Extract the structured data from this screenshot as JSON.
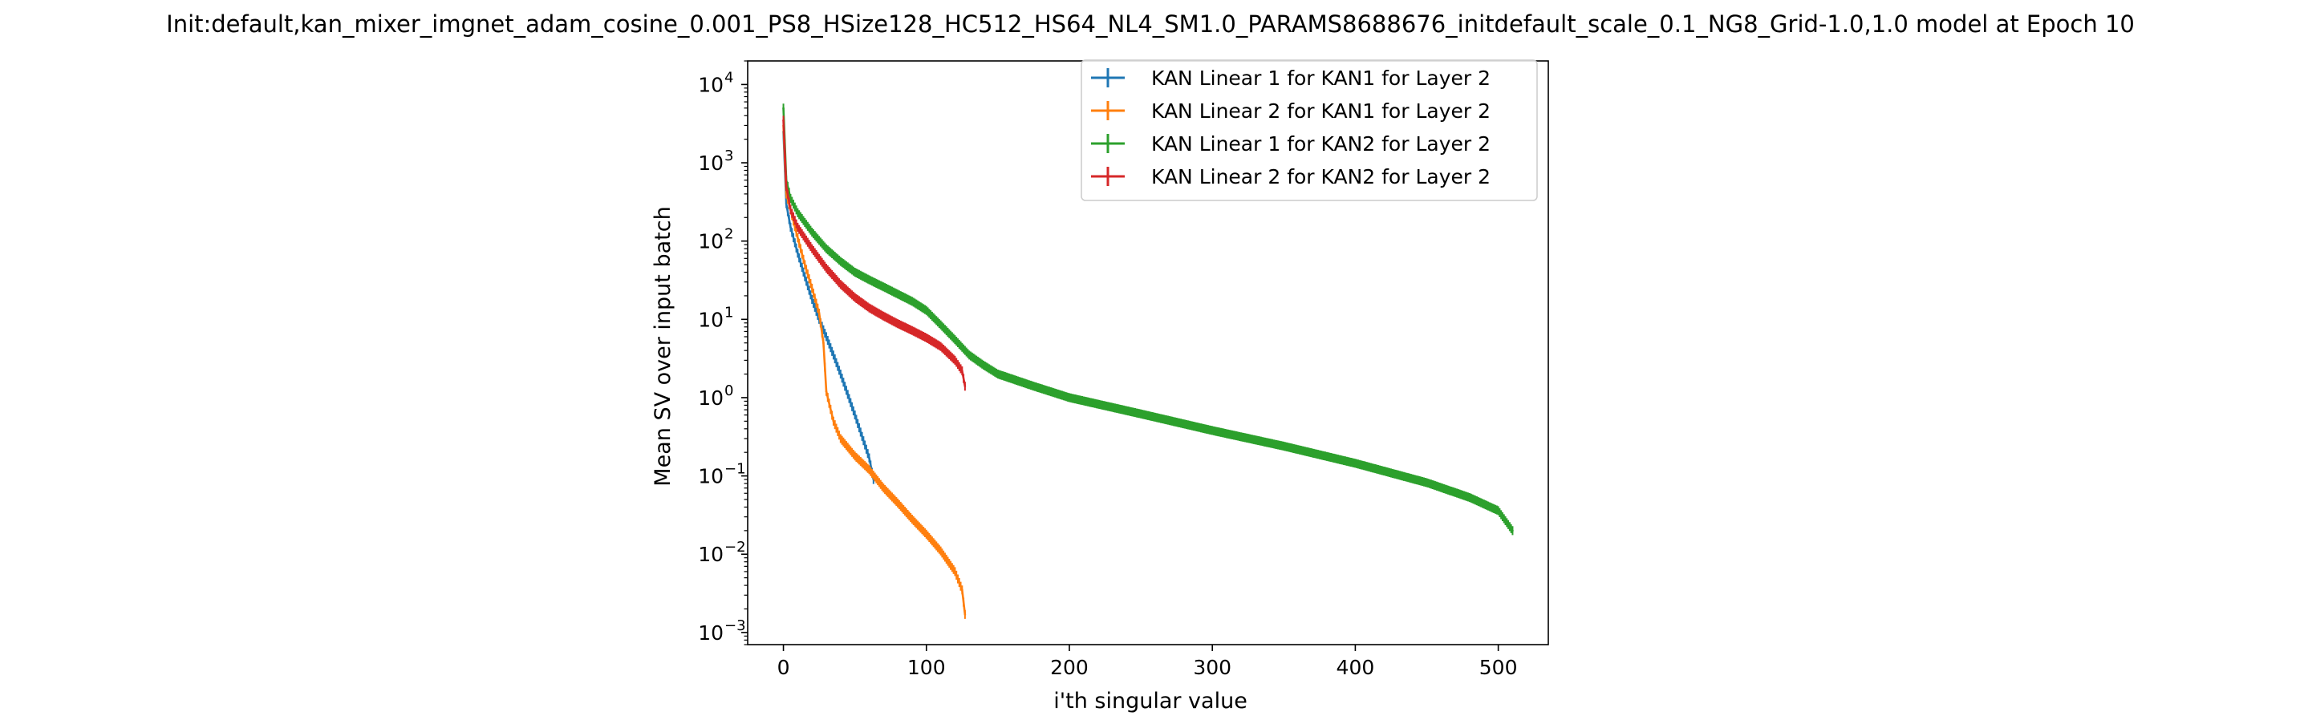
{
  "chart_data": {
    "type": "line",
    "title": "Init:default,kan_mixer_imgnet_adam_cosine_0.001_PS8_HSize128_HC512_HS64_NL4_SM1.0_PARAMS8688676_initdefault_scale_0.1_NG8_Grid-1.0,1.0 model at Epoch 10",
    "xlabel": "i'th singular value",
    "ylabel": "Mean SV over input batch",
    "xlim": [
      -25,
      535
    ],
    "ylim": [
      0.0007,
      20000
    ],
    "yscale": "log",
    "xticks": [
      0,
      100,
      200,
      300,
      400,
      500
    ],
    "yticks": [
      {
        "value": 0.001,
        "base": "10",
        "exp": "−3"
      },
      {
        "value": 0.01,
        "base": "10",
        "exp": "−2"
      },
      {
        "value": 0.1,
        "base": "10",
        "exp": "−1"
      },
      {
        "value": 1,
        "base": "10",
        "exp": "0"
      },
      {
        "value": 10,
        "base": "10",
        "exp": "1"
      },
      {
        "value": 100,
        "base": "10",
        "exp": "2"
      },
      {
        "value": 1000,
        "base": "10",
        "exp": "3"
      },
      {
        "value": 10000,
        "base": "10",
        "exp": "4"
      }
    ],
    "grid": false,
    "legend_position": "top-right",
    "series": [
      {
        "name": "KAN Linear 1 for KAN1 for Layer 2",
        "color": "#1f77b4",
        "points": [
          [
            0,
            2500
          ],
          [
            2,
            300
          ],
          [
            5,
            150
          ],
          [
            10,
            70
          ],
          [
            15,
            35
          ],
          [
            20,
            18
          ],
          [
            25,
            10
          ],
          [
            30,
            6
          ],
          [
            35,
            3.5
          ],
          [
            40,
            2.0
          ],
          [
            45,
            1.1
          ],
          [
            50,
            0.6
          ],
          [
            55,
            0.32
          ],
          [
            60,
            0.17
          ],
          [
            63,
            0.09
          ]
        ]
      },
      {
        "name": "KAN Linear 2 for KAN1 for Layer 2",
        "color": "#ff7f0e",
        "points": [
          [
            0,
            3000
          ],
          [
            2,
            400
          ],
          [
            5,
            250
          ],
          [
            10,
            110
          ],
          [
            15,
            50
          ],
          [
            20,
            25
          ],
          [
            25,
            12
          ],
          [
            28,
            5
          ],
          [
            30,
            1.2
          ],
          [
            35,
            0.5
          ],
          [
            40,
            0.3
          ],
          [
            50,
            0.18
          ],
          [
            60,
            0.12
          ],
          [
            70,
            0.07
          ],
          [
            80,
            0.045
          ],
          [
            90,
            0.028
          ],
          [
            100,
            0.018
          ],
          [
            110,
            0.011
          ],
          [
            120,
            0.006
          ],
          [
            125,
            0.0035
          ],
          [
            127,
            0.0017
          ]
        ]
      },
      {
        "name": "KAN Linear 1 for KAN2 for Layer 2",
        "color": "#2ca02c",
        "points": [
          [
            0,
            5000
          ],
          [
            2,
            600
          ],
          [
            5,
            350
          ],
          [
            10,
            230
          ],
          [
            20,
            130
          ],
          [
            30,
            80
          ],
          [
            40,
            55
          ],
          [
            50,
            40
          ],
          [
            60,
            32
          ],
          [
            70,
            26
          ],
          [
            80,
            21
          ],
          [
            90,
            17
          ],
          [
            100,
            13
          ],
          [
            110,
            8.5
          ],
          [
            120,
            5.5
          ],
          [
            130,
            3.5
          ],
          [
            140,
            2.6
          ],
          [
            150,
            2.0
          ],
          [
            175,
            1.4
          ],
          [
            200,
            1.0
          ],
          [
            250,
            0.62
          ],
          [
            300,
            0.38
          ],
          [
            350,
            0.24
          ],
          [
            400,
            0.145
          ],
          [
            450,
            0.082
          ],
          [
            480,
            0.053
          ],
          [
            500,
            0.036
          ],
          [
            510,
            0.02
          ]
        ]
      },
      {
        "name": "KAN Linear 2 for KAN2 for Layer 2",
        "color": "#d62728",
        "points": [
          [
            0,
            3500
          ],
          [
            2,
            500
          ],
          [
            5,
            250
          ],
          [
            10,
            150
          ],
          [
            20,
            80
          ],
          [
            30,
            45
          ],
          [
            40,
            28
          ],
          [
            50,
            19
          ],
          [
            60,
            14
          ],
          [
            70,
            11
          ],
          [
            80,
            8.8
          ],
          [
            90,
            7.2
          ],
          [
            100,
            5.8
          ],
          [
            110,
            4.5
          ],
          [
            120,
            3.0
          ],
          [
            125,
            2.2
          ],
          [
            127,
            1.4
          ]
        ]
      }
    ]
  }
}
